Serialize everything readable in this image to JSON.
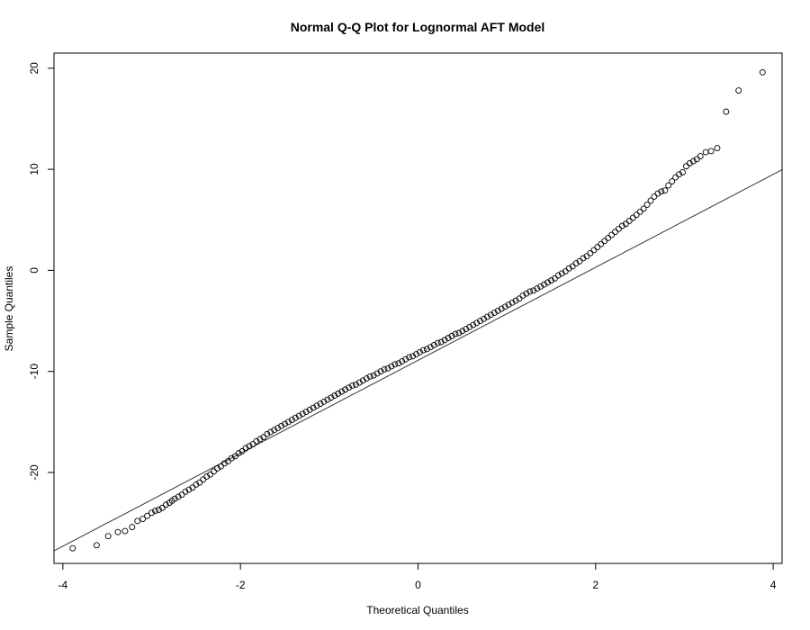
{
  "chart_data": {
    "type": "scatter",
    "title": "Normal Q-Q Plot for Lognormal AFT Model",
    "xlabel": "Theoretical Quantiles",
    "ylabel": "Sample Quantiles",
    "xlim": [
      -4.1,
      4.1
    ],
    "ylim": [
      -29.0,
      21.5
    ],
    "xticks": [
      -4,
      -2,
      0,
      2,
      4
    ],
    "xtick_labels": [
      "-4",
      "-2",
      "0",
      "2",
      "4"
    ],
    "yticks": [
      -20,
      -10,
      0,
      10,
      20
    ],
    "ytick_labels": [
      "-20",
      "-10",
      "0",
      "10",
      "20"
    ],
    "grid": false,
    "reference_line": {
      "intercept": -8.9,
      "slope": 4.6
    },
    "series": [
      {
        "marker": "open-circle",
        "points": [
          [
            -3.89,
            -27.5
          ],
          [
            -3.62,
            -27.2
          ],
          [
            -3.49,
            -26.3
          ],
          [
            -3.38,
            -25.9
          ],
          [
            -3.3,
            -25.8
          ],
          [
            -3.22,
            -25.4
          ],
          [
            -3.16,
            -24.8
          ],
          [
            -3.1,
            -24.6
          ],
          [
            -3.05,
            -24.3
          ],
          [
            -3.0,
            -24.0
          ],
          [
            -2.96,
            -23.8
          ],
          [
            -2.92,
            -23.7
          ],
          [
            -2.88,
            -23.5
          ],
          [
            -2.84,
            -23.2
          ],
          [
            -2.8,
            -23.0
          ],
          [
            -2.77,
            -22.8
          ],
          [
            -2.74,
            -22.6
          ],
          [
            -2.7,
            -22.4
          ],
          [
            -2.66,
            -22.2
          ],
          [
            -2.62,
            -21.9
          ],
          [
            -2.58,
            -21.7
          ],
          [
            -2.54,
            -21.5
          ],
          [
            -2.5,
            -21.2
          ],
          [
            -2.46,
            -21.0
          ],
          [
            -2.42,
            -20.7
          ],
          [
            -2.38,
            -20.4
          ],
          [
            -2.34,
            -20.2
          ],
          [
            -2.3,
            -19.9
          ],
          [
            -2.26,
            -19.6
          ],
          [
            -2.22,
            -19.4
          ],
          [
            -2.18,
            -19.1
          ],
          [
            -2.14,
            -18.9
          ],
          [
            -2.1,
            -18.6
          ],
          [
            -2.06,
            -18.4
          ],
          [
            -2.02,
            -18.1
          ],
          [
            -1.98,
            -17.9
          ],
          [
            -1.94,
            -17.6
          ],
          [
            -1.9,
            -17.4
          ],
          [
            -1.86,
            -17.2
          ],
          [
            -1.82,
            -16.9
          ],
          [
            -1.78,
            -16.7
          ],
          [
            -1.74,
            -16.5
          ],
          [
            -1.7,
            -16.2
          ],
          [
            -1.66,
            -16.0
          ],
          [
            -1.62,
            -15.8
          ],
          [
            -1.58,
            -15.6
          ],
          [
            -1.54,
            -15.4
          ],
          [
            -1.5,
            -15.2
          ],
          [
            -1.46,
            -15.0
          ],
          [
            -1.42,
            -14.8
          ],
          [
            -1.38,
            -14.6
          ],
          [
            -1.34,
            -14.4
          ],
          [
            -1.3,
            -14.2
          ],
          [
            -1.26,
            -14.0
          ],
          [
            -1.22,
            -13.8
          ],
          [
            -1.18,
            -13.6
          ],
          [
            -1.14,
            -13.4
          ],
          [
            -1.1,
            -13.2
          ],
          [
            -1.06,
            -13.0
          ],
          [
            -1.02,
            -12.8
          ],
          [
            -0.98,
            -12.6
          ],
          [
            -0.94,
            -12.4
          ],
          [
            -0.9,
            -12.2
          ],
          [
            -0.86,
            -12.0
          ],
          [
            -0.82,
            -11.8
          ],
          [
            -0.78,
            -11.6
          ],
          [
            -0.74,
            -11.4
          ],
          [
            -0.7,
            -11.3
          ],
          [
            -0.66,
            -11.1
          ],
          [
            -0.62,
            -10.9
          ],
          [
            -0.58,
            -10.7
          ],
          [
            -0.54,
            -10.5
          ],
          [
            -0.5,
            -10.4
          ],
          [
            -0.46,
            -10.2
          ],
          [
            -0.42,
            -10.0
          ],
          [
            -0.38,
            -9.8
          ],
          [
            -0.34,
            -9.7
          ],
          [
            -0.3,
            -9.5
          ],
          [
            -0.26,
            -9.3
          ],
          [
            -0.22,
            -9.2
          ],
          [
            -0.18,
            -9.0
          ],
          [
            -0.14,
            -8.8
          ],
          [
            -0.1,
            -8.6
          ],
          [
            -0.06,
            -8.5
          ],
          [
            -0.02,
            -8.3
          ],
          [
            0.02,
            -8.1
          ],
          [
            0.06,
            -7.9
          ],
          [
            0.1,
            -7.8
          ],
          [
            0.14,
            -7.6
          ],
          [
            0.18,
            -7.4
          ],
          [
            0.22,
            -7.2
          ],
          [
            0.26,
            -7.1
          ],
          [
            0.3,
            -6.9
          ],
          [
            0.34,
            -6.7
          ],
          [
            0.38,
            -6.5
          ],
          [
            0.42,
            -6.3
          ],
          [
            0.46,
            -6.2
          ],
          [
            0.5,
            -6.0
          ],
          [
            0.54,
            -5.8
          ],
          [
            0.58,
            -5.6
          ],
          [
            0.62,
            -5.4
          ],
          [
            0.66,
            -5.2
          ],
          [
            0.7,
            -5.0
          ],
          [
            0.74,
            -4.8
          ],
          [
            0.78,
            -4.6
          ],
          [
            0.82,
            -4.4
          ],
          [
            0.86,
            -4.2
          ],
          [
            0.9,
            -4.0
          ],
          [
            0.94,
            -3.8
          ],
          [
            0.98,
            -3.6
          ],
          [
            1.02,
            -3.4
          ],
          [
            1.06,
            -3.2
          ],
          [
            1.1,
            -3.0
          ],
          [
            1.14,
            -2.8
          ],
          [
            1.18,
            -2.5
          ],
          [
            1.22,
            -2.3
          ],
          [
            1.26,
            -2.1
          ],
          [
            1.3,
            -2.0
          ],
          [
            1.34,
            -1.8
          ],
          [
            1.38,
            -1.6
          ],
          [
            1.42,
            -1.4
          ],
          [
            1.46,
            -1.2
          ],
          [
            1.5,
            -1.0
          ],
          [
            1.54,
            -0.8
          ],
          [
            1.58,
            -0.5
          ],
          [
            1.62,
            -0.3
          ],
          [
            1.66,
            -0.1
          ],
          [
            1.7,
            0.2
          ],
          [
            1.74,
            0.4
          ],
          [
            1.78,
            0.7
          ],
          [
            1.82,
            0.9
          ],
          [
            1.86,
            1.2
          ],
          [
            1.9,
            1.4
          ],
          [
            1.94,
            1.7
          ],
          [
            1.98,
            2.0
          ],
          [
            2.02,
            2.3
          ],
          [
            2.06,
            2.6
          ],
          [
            2.1,
            2.9
          ],
          [
            2.14,
            3.2
          ],
          [
            2.18,
            3.5
          ],
          [
            2.22,
            3.8
          ],
          [
            2.26,
            4.1
          ],
          [
            2.3,
            4.4
          ],
          [
            2.34,
            4.6
          ],
          [
            2.38,
            4.9
          ],
          [
            2.42,
            5.2
          ],
          [
            2.46,
            5.5
          ],
          [
            2.5,
            5.8
          ],
          [
            2.54,
            6.1
          ],
          [
            2.58,
            6.5
          ],
          [
            2.62,
            6.9
          ],
          [
            2.66,
            7.3
          ],
          [
            2.7,
            7.6
          ],
          [
            2.74,
            7.8
          ],
          [
            2.78,
            7.9
          ],
          [
            2.82,
            8.4
          ],
          [
            2.86,
            8.8
          ],
          [
            2.9,
            9.2
          ],
          [
            2.94,
            9.5
          ],
          [
            2.98,
            9.7
          ],
          [
            3.02,
            10.3
          ],
          [
            3.06,
            10.6
          ],
          [
            3.1,
            10.8
          ],
          [
            3.14,
            11.0
          ],
          [
            3.18,
            11.3
          ],
          [
            3.24,
            11.7
          ],
          [
            3.3,
            11.8
          ],
          [
            3.37,
            12.1
          ],
          [
            3.47,
            15.7
          ],
          [
            3.61,
            17.8
          ],
          [
            3.88,
            19.6
          ]
        ]
      }
    ]
  }
}
